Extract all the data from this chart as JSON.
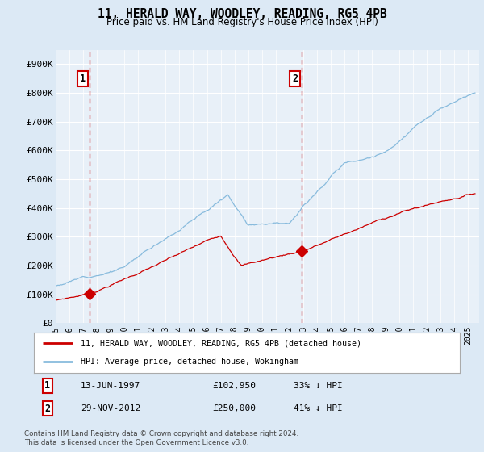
{
  "title": "11, HERALD WAY, WOODLEY, READING, RG5 4PB",
  "subtitle": "Price paid vs. HM Land Registry's House Price Index (HPI)",
  "ylabel_ticks": [
    "£0",
    "£100K",
    "£200K",
    "£300K",
    "£400K",
    "£500K",
    "£600K",
    "£700K",
    "£800K",
    "£900K"
  ],
  "ytick_values": [
    0,
    100000,
    200000,
    300000,
    400000,
    500000,
    600000,
    700000,
    800000,
    900000
  ],
  "ylim": [
    0,
    950000
  ],
  "xlim_start": 1995.0,
  "xlim_end": 2025.8,
  "transaction1": {
    "date": 1997.45,
    "price": 102950,
    "label": "1"
  },
  "transaction2": {
    "date": 2012.91,
    "price": 250000,
    "label": "2"
  },
  "legend_line1": "11, HERALD WAY, WOODLEY, READING, RG5 4PB (detached house)",
  "legend_line2": "HPI: Average price, detached house, Wokingham",
  "table_row1": {
    "num": "1",
    "date": "13-JUN-1997",
    "price": "£102,950",
    "hpi": "33% ↓ HPI"
  },
  "table_row2": {
    "num": "2",
    "date": "29-NOV-2012",
    "price": "£250,000",
    "hpi": "41% ↓ HPI"
  },
  "footer": "Contains HM Land Registry data © Crown copyright and database right 2024.\nThis data is licensed under the Open Government Licence v3.0.",
  "line_color_property": "#cc0000",
  "line_color_hpi": "#88bbdd",
  "background_color": "#dce9f5",
  "plot_bg_color": "#e8f0f8",
  "grid_color": "#ffffff",
  "dashed_line_color": "#cc0000",
  "hpi_seed": 12,
  "prop_seed": 7
}
